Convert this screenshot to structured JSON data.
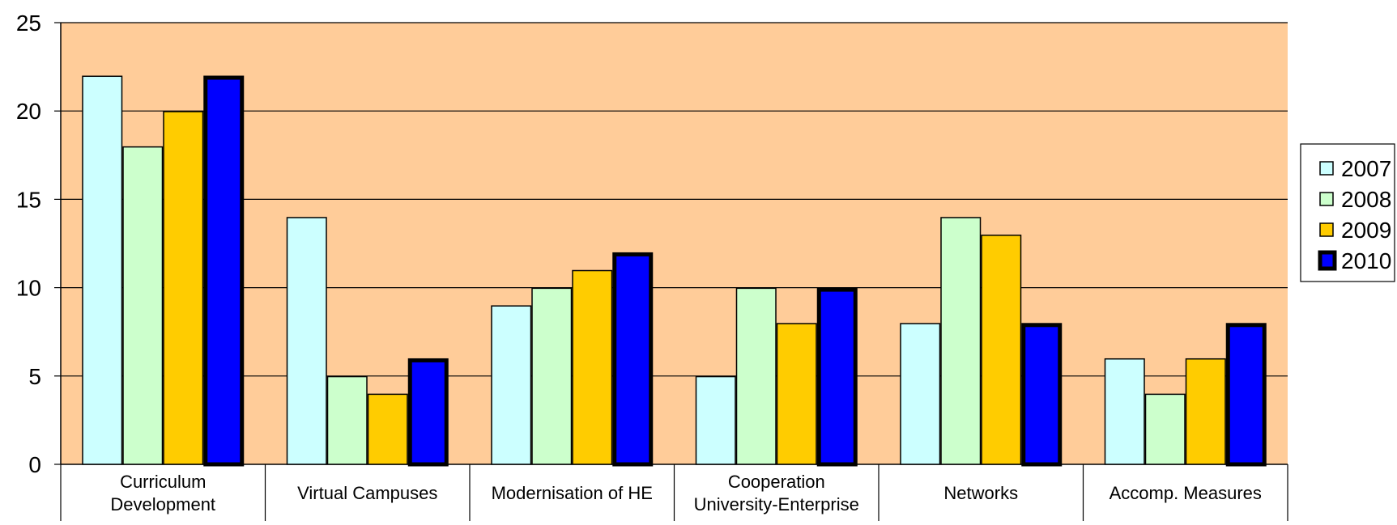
{
  "chart_data": {
    "type": "bar",
    "title": "",
    "xlabel": "",
    "ylabel": "",
    "ylim": [
      0,
      25
    ],
    "yticks": [
      0,
      5,
      10,
      15,
      20,
      25
    ],
    "grid": true,
    "legend_position": "right",
    "plot_background": "#FFCC99",
    "categories": [
      [
        "Curriculum",
        "Development"
      ],
      [
        "Virtual Campuses"
      ],
      [
        "Modernisation of HE"
      ],
      [
        "Cooperation",
        "University-Enterprise"
      ],
      [
        "Networks"
      ],
      [
        "Accomp. Measures"
      ]
    ],
    "series": [
      {
        "name": "2007",
        "color": "#CCFFFF",
        "values": [
          22,
          14,
          9,
          5,
          8,
          6
        ]
      },
      {
        "name": "2008",
        "color": "#CCFFCC",
        "values": [
          18,
          5,
          10,
          10,
          14,
          4
        ]
      },
      {
        "name": "2009",
        "color": "#FFCC00",
        "values": [
          20,
          4,
          11,
          8,
          13,
          6
        ]
      },
      {
        "name": "2010",
        "color": "#0000FF",
        "values": [
          22,
          6,
          12,
          10,
          8,
          8
        ],
        "bold_border": true
      }
    ]
  }
}
